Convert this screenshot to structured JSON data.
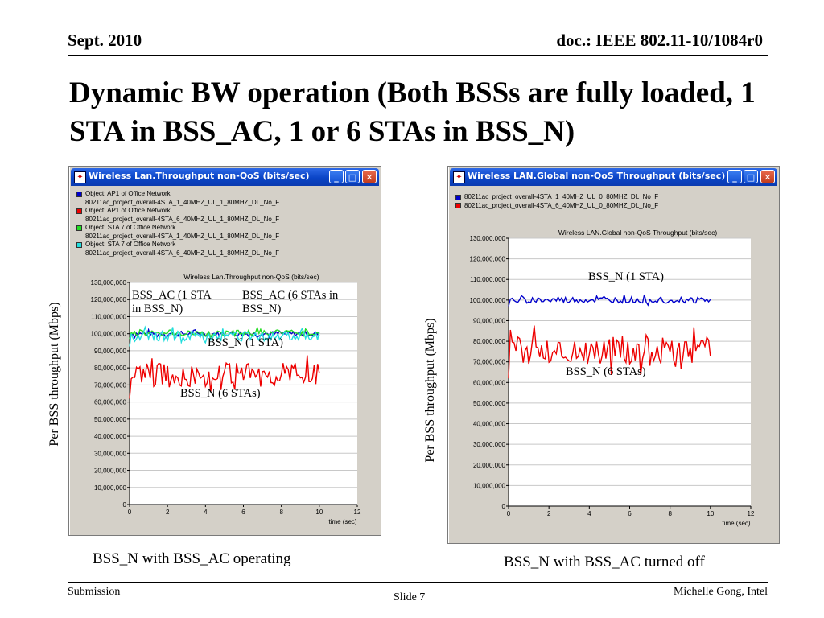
{
  "header": {
    "date": "Sept. 2010",
    "doc": "doc.: IEEE 802.11-10/1084r0"
  },
  "title": "Dynamic BW operation (Both BSSs are fully loaded, 1 STA in BSS_AC, 1 or 6 STAs in BSS_N)",
  "footer": {
    "left": "Submission",
    "center": "Slide 7",
    "right": "Michelle Gong, Intel"
  },
  "y_axis_label": "Per BSS throughput (Mbps)",
  "left_window": {
    "title": "Wireless Lan.Throughput non-QoS (bits/sec)",
    "legend": [
      {
        "label": "Object: AP1 of Office Network",
        "color": "#0000cc"
      },
      {
        "label": "80211ac_project_overall-4STA_1_40MHZ_UL_1_80MHZ_DL_No_F",
        "color": ""
      },
      {
        "label": "Object: AP1 of Office Network",
        "color": "#ee0000"
      },
      {
        "label": "80211ac_project_overall-4STA_6_40MHZ_UL_1_80MHZ_DL_No_F",
        "color": ""
      },
      {
        "label": "Object: STA 7 of Office Network",
        "color": "#22dd22"
      },
      {
        "label": "80211ac_project_overall-4STA_1_40MHZ_UL_1_80MHZ_DL_No_F",
        "color": ""
      },
      {
        "label": "Object: STA 7 of Office Network",
        "color": "#22dddd"
      },
      {
        "label": "80211ac_project_overall-4STA_6_40MHZ_UL_1_80MHZ_DL_No_F",
        "color": ""
      }
    ],
    "annotations": {
      "bss_ac_1": "BSS_AC (1 STA in BSS_N)",
      "bss_ac_1_l1": "BSS_AC (1 STA",
      "bss_ac_1_l2": "in BSS_N)",
      "bss_ac_6_l1": "BSS_AC (6 STAs in",
      "bss_ac_6_l2": "BSS_N)",
      "bss_n_1": "BSS_N (1 STA)",
      "bss_n_6": "BSS_N (6 STAs)"
    },
    "caption": "BSS_N with BSS_AC operating"
  },
  "right_window": {
    "title": "Wireless LAN.Global non-QoS Throughput (bits/sec)",
    "legend": [
      {
        "label": "80211ac_project_overall-4STA_1_40MHZ_UL_0_80MHZ_DL_No_F",
        "color": "#0000cc"
      },
      {
        "label": "80211ac_project_overall-4STA_6_40MHZ_UL_0_80MHZ_DL_No_F",
        "color": "#ee0000"
      }
    ],
    "annotations": {
      "bss_n_1": "BSS_N (1 STA)",
      "bss_n_6": "BSS_N (6 STAs)"
    },
    "caption": "BSS_N with BSS_AC turned off"
  },
  "chart_data": [
    {
      "type": "line",
      "title": "Wireless Lan.Throughput non-QoS (bits/sec)",
      "xlabel": "time (sec)",
      "ylabel": "",
      "xlim": [
        0,
        12
      ],
      "ylim": [
        0,
        130000000
      ],
      "x_ticks": [
        "0",
        "2",
        "4",
        "6",
        "8",
        "10",
        "12"
      ],
      "y_ticks": [
        "0",
        "10,000,000",
        "20,000,000",
        "30,000,000",
        "40,000,000",
        "50,000,000",
        "60,000,000",
        "70,000,000",
        "80,000,000",
        "90,000,000",
        "100,000,000",
        "110,000,000",
        "120,000,000",
        "130,000,000"
      ],
      "grid": true,
      "series": [
        {
          "name": "Object: AP1 of Office Network 80211ac_project_overall-4STA_1_40MHZ_UL_1_80MHZ_DL_No_F",
          "color": "#0000cc",
          "x_range": [
            0,
            10
          ],
          "mean": 100000000,
          "noise": 1500000
        },
        {
          "name": "Object: AP1 of Office Network 80211ac_project_overall-4STA_6_40MHZ_UL_1_80MHZ_DL_No_F",
          "color": "#ee0000",
          "x_range": [
            0,
            10
          ],
          "mean": 76000000,
          "noise": 7000000
        },
        {
          "name": "Object: STA 7 of Office Network 80211ac_project_overall-4STA_1_40MHZ_UL_1_80MHZ_DL_No_F",
          "color": "#22dd22",
          "x_range": [
            0,
            10
          ],
          "mean": 100500000,
          "noise": 1800000
        },
        {
          "name": "Object: STA 7 of Office Network 80211ac_project_overall-4STA_6_40MHZ_UL_1_80MHZ_DL_No_F",
          "color": "#22dddd",
          "x_range": [
            0,
            10
          ],
          "mean": 98500000,
          "noise": 3000000
        }
      ]
    },
    {
      "type": "line",
      "title": "Wireless LAN.Global non-QoS Throughput (bits/sec)",
      "xlabel": "time (sec)",
      "ylabel": "",
      "xlim": [
        0,
        12
      ],
      "ylim": [
        0,
        130000000
      ],
      "x_ticks": [
        "0",
        "2",
        "4",
        "6",
        "8",
        "10",
        "12"
      ],
      "y_ticks": [
        "0",
        "10,000,000",
        "20,000,000",
        "30,000,000",
        "40,000,000",
        "50,000,000",
        "60,000,000",
        "70,000,000",
        "80,000,000",
        "90,000,000",
        "100,000,000",
        "110,000,000",
        "120,000,000",
        "130,000,000"
      ],
      "grid": true,
      "series": [
        {
          "name": "80211ac_project_overall-4STA_1_40MHZ_UL_0_80MHZ_DL_No_F",
          "color": "#0000cc",
          "x_range": [
            0,
            10
          ],
          "mean": 100000000,
          "noise": 1500000
        },
        {
          "name": "80211ac_project_overall-4STA_6_40MHZ_UL_0_80MHZ_DL_No_F",
          "color": "#ee0000",
          "x_range": [
            0,
            10
          ],
          "mean": 76000000,
          "noise": 7000000
        }
      ]
    }
  ]
}
